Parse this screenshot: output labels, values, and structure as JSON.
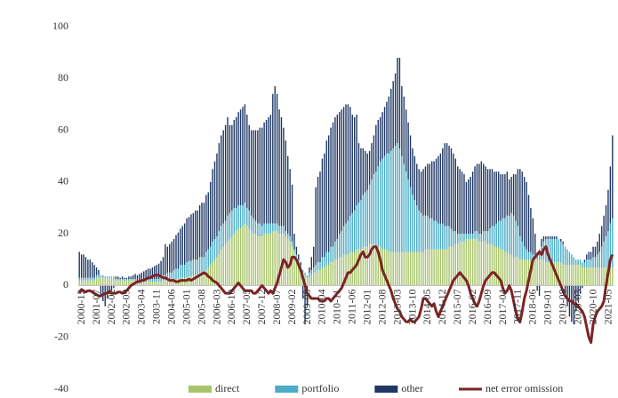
{
  "chart_data": {
    "type": "bar",
    "stacked": true,
    "grid": false,
    "legend": "bottom",
    "ylim": [
      -40,
      100
    ],
    "yticks": [
      -40,
      -20,
      0,
      20,
      40,
      60,
      80,
      100
    ],
    "categories": [
      "2000-12",
      null,
      null,
      null,
      null,
      null,
      null,
      "2001-07",
      null,
      null,
      null,
      null,
      null,
      null,
      "2002-02",
      null,
      null,
      null,
      null,
      null,
      null,
      "2002-09",
      null,
      null,
      null,
      null,
      null,
      null,
      "2003-04",
      null,
      null,
      null,
      null,
      null,
      null,
      "2003-11",
      null,
      null,
      null,
      null,
      null,
      null,
      "2004-06",
      null,
      null,
      null,
      null,
      null,
      null,
      "2005-01",
      null,
      null,
      null,
      null,
      null,
      null,
      "2005-08",
      null,
      null,
      null,
      null,
      null,
      null,
      "2006-03",
      null,
      null,
      null,
      null,
      null,
      null,
      "2006-10",
      null,
      null,
      null,
      null,
      null,
      null,
      "2007-05",
      null,
      null,
      null,
      null,
      null,
      null,
      "2007-12",
      null,
      null,
      null,
      null,
      null,
      null,
      "2008-07",
      null,
      null,
      null,
      null,
      null,
      null,
      "2009-02",
      null,
      null,
      null,
      null,
      null,
      null,
      "2009-09",
      null,
      null,
      null,
      null,
      null,
      null,
      "2010-04",
      null,
      null,
      null,
      null,
      null,
      null,
      "2010-11",
      null,
      null,
      null,
      null,
      null,
      null,
      "2011-06",
      null,
      null,
      null,
      null,
      null,
      null,
      "2012-01",
      null,
      null,
      null,
      null,
      null,
      null,
      "2012-08",
      null,
      null,
      null,
      null,
      null,
      null,
      "2013-03",
      null,
      null,
      null,
      null,
      null,
      null,
      "2013-10",
      null,
      null,
      null,
      null,
      null,
      null,
      "2014-05",
      null,
      null,
      null,
      null,
      null,
      null,
      "2014-12",
      null,
      null,
      null,
      null,
      null,
      null,
      "2015-07",
      null,
      null,
      null,
      null,
      null,
      null,
      "2016-02",
      null,
      null,
      null,
      null,
      null,
      null,
      "2016-09",
      null,
      null,
      null,
      null,
      null,
      null,
      "2017-04",
      null,
      null,
      null,
      null,
      null,
      null,
      "2017-11",
      null,
      null,
      null,
      null,
      null,
      null,
      "2018-06",
      null,
      null,
      null,
      null,
      null,
      null,
      "2019-01",
      null,
      null,
      null,
      null,
      null,
      null,
      "2019-08",
      null,
      null,
      null,
      null,
      null,
      null,
      "2020-03",
      null,
      null,
      null,
      null,
      null,
      null,
      "2020-10",
      null,
      null,
      null,
      null,
      null,
      null,
      "2021-05",
      null,
      null,
      null
    ],
    "series": [
      {
        "name": "direct",
        "color": "#a9c46c",
        "values": [
          2,
          2,
          2,
          2,
          2,
          2,
          2,
          2,
          3,
          3,
          3,
          3,
          3,
          3,
          3,
          3,
          3,
          2,
          2,
          2,
          2,
          2,
          2,
          2,
          2,
          2,
          2,
          1.5,
          1.5,
          1.5,
          1.5,
          1.5,
          1.5,
          1.5,
          1.5,
          1.5,
          1.5,
          1.5,
          1.5,
          2,
          2,
          2,
          2,
          2,
          2,
          2.5,
          2.5,
          3,
          3,
          3,
          3,
          3.5,
          3.5,
          4,
          4,
          4,
          5,
          5,
          5,
          6,
          7,
          8,
          9,
          10,
          11,
          12,
          14,
          15,
          16,
          17,
          18,
          19,
          20,
          21,
          22,
          22,
          23,
          24,
          23,
          22,
          21,
          20,
          20,
          19,
          19,
          19,
          20,
          20,
          20,
          20,
          21,
          21,
          21,
          20,
          20,
          20,
          19,
          18,
          17,
          15,
          13,
          11,
          9,
          7,
          5,
          4,
          3,
          3,
          4,
          5,
          5,
          6,
          6,
          7,
          7,
          8,
          8,
          9,
          9,
          10,
          10,
          11,
          11,
          12,
          12,
          12,
          13,
          13,
          13,
          14,
          14,
          14,
          15,
          15,
          15,
          16,
          16,
          16,
          15,
          15,
          15,
          14,
          14,
          14,
          13,
          13,
          13,
          13,
          13,
          13,
          13,
          13,
          13,
          13,
          13,
          13,
          13,
          13,
          13,
          13,
          13,
          14,
          14,
          14,
          14,
          14,
          14,
          14,
          14,
          14,
          14,
          14,
          15,
          15,
          15,
          16,
          16,
          17,
          17,
          17,
          18,
          18,
          18,
          18,
          18,
          18,
          17,
          17,
          17,
          17,
          16,
          16,
          16,
          15,
          15,
          15,
          14,
          14,
          13,
          13,
          12,
          12,
          11,
          11,
          11,
          10,
          10,
          10,
          10,
          10,
          10,
          10,
          10,
          10,
          10,
          10,
          10,
          9,
          9,
          9,
          9,
          9,
          9,
          9,
          9,
          8,
          8,
          8,
          8,
          8,
          8,
          8,
          8,
          8,
          7,
          7,
          7,
          7,
          7,
          7,
          7,
          7,
          7,
          7,
          7,
          7,
          7,
          7,
          7
        ]
      },
      {
        "name": "portfolio",
        "color": "#4bacc6",
        "values": [
          1,
          1,
          1,
          1,
          1,
          1,
          1,
          1,
          1,
          1,
          1,
          1,
          0.5,
          0.5,
          0.5,
          0.5,
          0.5,
          0.5,
          0.5,
          0.5,
          0.5,
          0.5,
          0.5,
          0.5,
          0.5,
          0.5,
          0.5,
          0.5,
          0.5,
          0.5,
          1,
          1,
          1,
          1,
          1,
          1,
          1,
          1,
          2,
          2,
          2,
          3,
          3,
          3,
          4,
          4,
          4,
          5,
          5,
          5,
          6,
          6,
          6,
          6,
          6,
          6,
          6,
          6,
          6,
          7,
          7,
          7,
          8,
          8,
          8,
          9,
          9,
          9,
          9,
          10,
          10,
          10,
          10,
          9,
          9,
          9,
          8,
          8,
          7,
          7,
          6,
          6,
          5,
          5,
          5,
          4,
          4,
          4,
          4,
          4,
          3,
          3,
          3,
          3,
          3,
          3,
          2,
          2,
          2,
          2,
          1,
          1,
          1,
          1,
          1,
          1,
          1,
          2,
          2,
          2,
          3,
          3,
          3,
          4,
          4,
          5,
          5,
          6,
          6,
          7,
          8,
          9,
          10,
          11,
          12,
          13,
          14,
          15,
          16,
          17,
          18,
          19,
          20,
          21,
          22,
          23,
          25,
          27,
          29,
          31,
          33,
          35,
          36,
          37,
          38,
          39,
          40,
          41,
          42,
          40,
          37,
          34,
          31,
          28,
          25,
          22,
          20,
          18,
          16,
          15,
          14,
          13,
          13,
          12,
          12,
          11,
          11,
          10,
          10,
          10,
          9,
          9,
          8,
          7,
          6,
          5,
          4,
          3,
          3,
          3,
          2,
          2,
          2,
          2,
          3,
          3,
          3,
          3,
          4,
          4,
          5,
          6,
          7,
          8,
          9,
          10,
          11,
          12,
          13,
          14,
          15,
          16,
          16,
          14,
          12,
          9,
          7,
          5,
          4,
          3,
          3,
          2,
          2,
          3,
          4,
          5,
          7,
          9,
          9,
          9,
          9,
          9,
          9,
          9,
          8,
          8,
          7,
          6,
          5,
          4,
          3,
          2,
          2,
          2,
          2,
          2,
          3,
          3,
          3,
          4,
          4,
          5,
          6,
          8,
          10,
          12,
          14,
          17,
          19
        ]
      },
      {
        "name": "other",
        "color": "#1f3864",
        "values": [
          10,
          9,
          9,
          8,
          7,
          7,
          6,
          5,
          3,
          2,
          -4,
          -6,
          -8,
          -5,
          -3,
          -2,
          -1,
          1,
          1,
          0.5,
          1,
          0.5,
          0.5,
          1,
          1,
          1.5,
          2,
          2,
          2.5,
          3,
          3,
          3.5,
          4,
          4,
          4.5,
          5,
          5.5,
          6,
          6,
          7,
          12,
          10,
          11,
          12,
          12,
          13,
          14,
          14,
          15,
          16,
          17,
          17,
          18,
          18,
          19,
          19,
          20,
          21,
          21,
          22,
          22,
          25,
          28,
          30,
          32,
          34,
          35,
          36,
          37,
          38,
          34,
          33,
          34,
          35,
          36,
          37,
          38,
          38,
          36,
          33,
          33,
          34,
          35,
          36,
          37,
          38,
          39,
          40,
          41,
          42,
          50,
          53,
          50,
          45,
          42,
          38,
          35,
          30,
          26,
          22,
          6,
          3,
          2,
          1,
          -5,
          -15,
          -8,
          2,
          5,
          8,
          30,
          33,
          35,
          38,
          40,
          43,
          45,
          46,
          48,
          48,
          48,
          47,
          47,
          46,
          46,
          45,
          42,
          38,
          36,
          35,
          23,
          20,
          18,
          16,
          14,
          13,
          14,
          15,
          18,
          18,
          17,
          18,
          19,
          20,
          22,
          24,
          26,
          28,
          33,
          35,
          27,
          26,
          24,
          22,
          20,
          18,
          17,
          16,
          16,
          16,
          18,
          19,
          20,
          21,
          22,
          23,
          24,
          26,
          27,
          29,
          32,
          32,
          31,
          31,
          30,
          28,
          26,
          25,
          24,
          23,
          20,
          21,
          22,
          24,
          25,
          26,
          27,
          28,
          26,
          25,
          24,
          23,
          22,
          21,
          20,
          19,
          18,
          17,
          17,
          17,
          14,
          14,
          16,
          18,
          22,
          26,
          27,
          27,
          26,
          22,
          17,
          14,
          8,
          -2,
          -4,
          3,
          2,
          1,
          1,
          1,
          1,
          1,
          1,
          0,
          1,
          1,
          -3,
          -8,
          -12,
          -14,
          -15,
          -10,
          -6,
          -3,
          -1,
          1,
          2,
          3,
          3,
          4,
          4,
          5,
          7,
          8,
          10,
          12,
          16,
          22,
          32
        ]
      },
      {
        "name": "net error omission",
        "type": "line",
        "color": "#7b2524",
        "values": [
          -3,
          -1.5,
          -2,
          -2.5,
          -2,
          -2,
          -2.5,
          -3,
          -3.5,
          -4,
          -4,
          -3.5,
          -3,
          -3,
          -2.5,
          -3,
          -3,
          -3,
          -2.5,
          -2.5,
          -3,
          -2.5,
          -2,
          -1,
          0,
          0.5,
          1,
          1.5,
          1.5,
          2,
          2,
          2.5,
          3,
          3,
          3.5,
          4,
          4,
          4,
          3.5,
          3,
          3,
          2.5,
          2,
          2,
          2,
          1.5,
          1.5,
          2,
          2,
          2,
          2,
          2.5,
          2,
          2.5,
          3,
          3.5,
          4,
          4.5,
          5,
          4.5,
          3.5,
          3,
          2,
          1.5,
          1,
          0,
          -1,
          -2,
          -3,
          -3,
          -3,
          -2,
          -1,
          0,
          1,
          0,
          -1,
          -2,
          -2,
          -2,
          -2,
          -3,
          -3,
          -2,
          -1,
          0,
          -1,
          -2,
          -3,
          -2,
          -3,
          -1,
          1,
          4,
          7,
          10,
          9,
          7,
          8,
          11,
          11,
          10,
          8,
          6,
          3,
          0,
          -3,
          -4,
          -5,
          -5,
          -5,
          -5,
          -6,
          -6,
          -6,
          -5,
          -5,
          -6,
          -5,
          -4,
          -3,
          -2,
          -1,
          1,
          3,
          5,
          5,
          6,
          7,
          8,
          10,
          12,
          13,
          11,
          11,
          12,
          14,
          15,
          15,
          13,
          10,
          6,
          4,
          2,
          0,
          -2,
          -5,
          -7,
          -9,
          -10,
          -12,
          -13,
          -14,
          -14,
          -13,
          -14,
          -14,
          -13,
          -12,
          -9,
          -5,
          -5,
          -6,
          -7,
          -8,
          -7,
          -10,
          -12,
          -10,
          -8,
          -6,
          -4,
          -2,
          0,
          2,
          3,
          4,
          5,
          4,
          3,
          2,
          0,
          -3,
          -5,
          -7,
          -8,
          -6,
          -3,
          0,
          2,
          3,
          4,
          5,
          5,
          4,
          3,
          2,
          -1,
          -3,
          -2,
          0,
          -2,
          -6,
          -10,
          -13,
          -14,
          -10,
          -5,
          -2,
          2,
          6,
          10,
          11,
          12,
          13,
          12,
          14,
          15,
          12,
          10,
          8,
          6,
          4,
          2,
          0,
          -2,
          -4,
          -5,
          -6,
          -6,
          -7,
          -7,
          -8,
          -9,
          -10,
          -12,
          -16,
          -20,
          -22,
          -15,
          -12,
          -10,
          -9,
          -8,
          -6,
          0,
          5,
          10,
          12
        ]
      }
    ]
  }
}
